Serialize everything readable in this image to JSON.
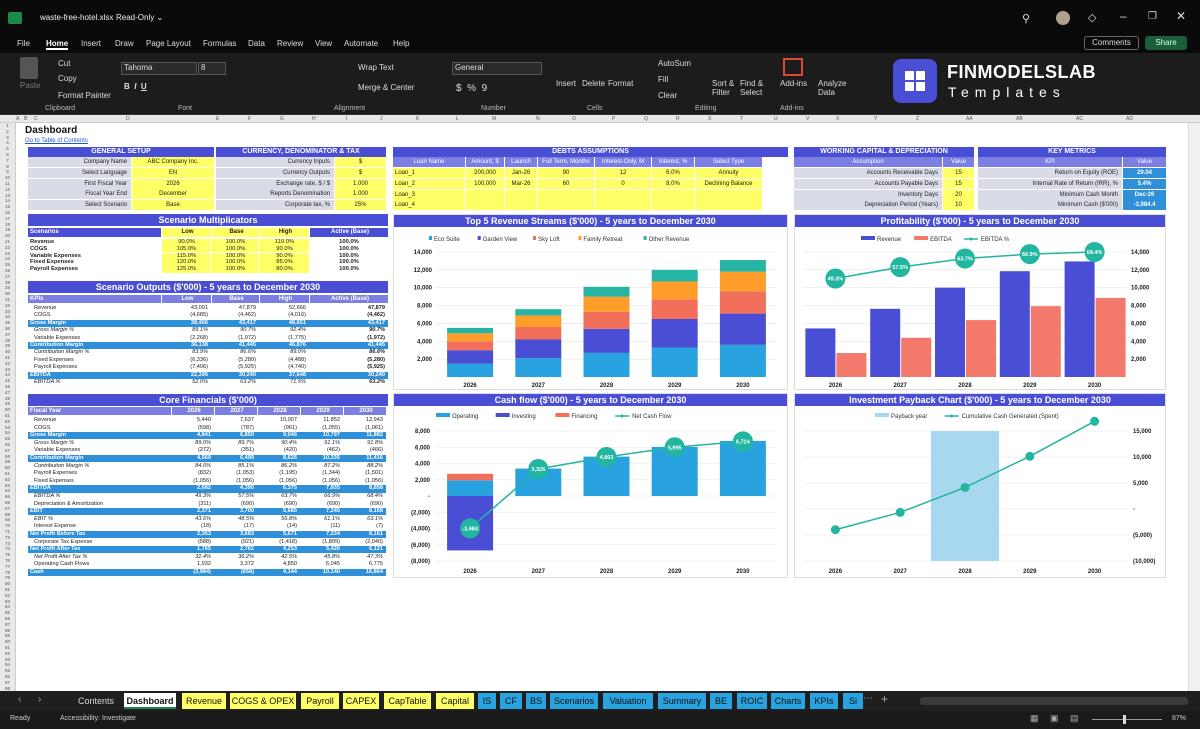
{
  "window": {
    "title": "waste-free-hotel.xlsx",
    "mode": "Read-Only ⌄"
  },
  "menu": [
    "File",
    "Home",
    "Insert",
    "Draw",
    "Page Layout",
    "Formulas",
    "Data",
    "Review",
    "View",
    "Automate",
    "Help"
  ],
  "comments": "Comments",
  "share": "Share",
  "ribbon": {
    "paste": "Paste",
    "cut": "Cut",
    "copy": "Copy",
    "format_painter": "Format Painter",
    "clipboard": "Clipboard",
    "font_name": "Tahoma",
    "font_size": "8",
    "font": "Font",
    "wrap": "Wrap Text",
    "merge": "Merge & Center",
    "alignment": "Alignment",
    "number_format": "General",
    "number": "Number",
    "insert": "Insert",
    "delete": "Delete",
    "format": "Format",
    "cells": "Cells",
    "autosum": "AutoSum",
    "fill": "Fill",
    "clear": "Clear",
    "sort": "Sort & Filter",
    "find": "Find & Select",
    "editing": "Editing",
    "addins": "Add-ins",
    "analyze": "Analyze Data",
    "addins_group": "Add-ins"
  },
  "logo": {
    "name": "FINMODELSLAB",
    "sub": "Templates"
  },
  "col_letters": [
    "A",
    "B",
    "C",
    "D",
    "E",
    "F",
    "G",
    "H",
    "I",
    "J",
    "K",
    "L",
    "M",
    "N",
    "O",
    "P",
    "Q",
    "R",
    "S",
    "T",
    "U",
    "V",
    "X",
    "Y",
    "Z",
    "AA",
    "AB",
    "AC",
    "AD"
  ],
  "sheet": {
    "title": "Dashboard",
    "toc": "Go to Table of Contents",
    "general": {
      "title": "GENERAL SETUP",
      "rows": [
        [
          "Company Name",
          "ABC Company Inc."
        ],
        [
          "Select Language",
          "EN"
        ],
        [
          "First Fiscal Year",
          "2026"
        ],
        [
          "Fiscal Year End",
          "December"
        ],
        [
          "Select Scenario",
          "Base"
        ]
      ]
    },
    "currency": {
      "title": "CURRENCY, DENOMINATOR & TAX",
      "rows": [
        [
          "Currency Inputs",
          "$"
        ],
        [
          "Currency Outputs",
          "$"
        ],
        [
          "Exchange rate, $ / $",
          "1.000"
        ],
        [
          "Reports Denomination",
          "1.000"
        ],
        [
          "Corporate tax, %",
          "25%"
        ]
      ]
    },
    "debts": {
      "title": "DEBTS ASSUMPTIONS",
      "cols": [
        "Loan Name",
        "Amount, $",
        "Launch",
        "Full Term, Months",
        "Interest-Only, M",
        "Interest, %",
        "Select Type"
      ],
      "rows": [
        [
          "Loan_1",
          "200,000",
          "Jan-26",
          "90",
          "12",
          "6.0%",
          "Annuity"
        ],
        [
          "Loan_2",
          "100,000",
          "Mar-26",
          "60",
          "0",
          "8.0%",
          "Declining Balance"
        ],
        [
          "Loan_3",
          "",
          "",
          "",
          "",
          "",
          ""
        ],
        [
          "Loan_4",
          "",
          "",
          "",
          "",
          "",
          ""
        ]
      ]
    },
    "wc": {
      "title": "WORKING CAPITAL & DEPRECIATION",
      "cols": [
        "Assumption",
        "Value"
      ],
      "rows": [
        [
          "Accounts Receivable Days",
          "15"
        ],
        [
          "Accounts Payable Days",
          "15"
        ],
        [
          "Inventory Days",
          "20"
        ],
        [
          "Depreciation Period (Years)",
          "10"
        ]
      ]
    },
    "km": {
      "title": "KEY METRICS",
      "cols": [
        "KPI",
        "Value"
      ],
      "rows": [
        [
          "Return on Equity (ROE)",
          "29.04"
        ],
        [
          "Internal Rate of Return (IRR), %",
          "5.4%"
        ],
        [
          "Minimum Cash Month",
          "Dec-26"
        ],
        [
          "Minimum Cash ($'000)",
          "-3,984.4"
        ]
      ]
    },
    "sm": {
      "title": "Scenario Multiplicators",
      "cols": [
        "Scenarios",
        "Low",
        "Base",
        "High",
        "Active (Base)"
      ],
      "rows": [
        [
          "Revenue",
          "90.0%",
          "100.0%",
          "110.0%",
          "100.0%"
        ],
        [
          "COGS",
          "105.0%",
          "100.0%",
          "90.0%",
          "100.0%"
        ],
        [
          "Variable Expenses",
          "115.0%",
          "100.0%",
          "90.0%",
          "100.0%"
        ],
        [
          "Fixed Expenses",
          "120.0%",
          "100.0%",
          "85.0%",
          "100.0%"
        ],
        [
          "Payroll Expenses",
          "125.0%",
          "100.0%",
          "80.0%",
          "100.0%"
        ]
      ]
    },
    "so": {
      "title": "Scenario Outputs ($'000) - 5 years to December 2030",
      "cols": [
        "KPIs",
        "Low",
        "Base",
        "High",
        "Active (Base)"
      ],
      "rows": [
        [
          "Revenue",
          "43,091",
          "47,879",
          "52,666",
          "47,879"
        ],
        [
          "COGS",
          "(4,685)",
          "(4,462)",
          "(4,016)",
          "(4,462)"
        ],
        [
          "Gross Margin",
          "38,406",
          "43,417",
          "48,651",
          "43,417"
        ],
        [
          "Gross Margin %",
          "89.1%",
          "90.7%",
          "92.4%",
          "90.7%"
        ],
        [
          "Variable Expenses",
          "(2,268)",
          "(1,972)",
          "(1,775)",
          "(1,972)"
        ],
        [
          "Contribution Margin",
          "36,138",
          "41,445",
          "46,876",
          "41,445"
        ],
        [
          "Contribution Margin %",
          "83.9%",
          "86.6%",
          "89.0%",
          "86.6%"
        ],
        [
          "Fixed Expenses",
          "(6,336)",
          "(5,280)",
          "(4,488)",
          "(5,280)"
        ],
        [
          "Payroll Expenses",
          "(7,406)",
          "(5,925)",
          "(4,740)",
          "(5,925)"
        ],
        [
          "EBITDA",
          "22,396",
          "30,240",
          "37,648",
          "30,240"
        ],
        [
          "EBITDA %",
          "52.0%",
          "63.2%",
          "71.5%",
          "63.2%"
        ]
      ]
    },
    "cf": {
      "title": "Core Financials ($'000)",
      "cols": [
        "Fiscal Year",
        "2026",
        "2027",
        "2028",
        "2029",
        "2030"
      ],
      "rows": [
        [
          "Revenue",
          "5,440",
          "7,637",
          "10,007",
          "11,852",
          "12,943"
        ],
        [
          "COGS",
          "(598)",
          "(787)",
          "(961)",
          "(1,055)",
          "(1,061)"
        ],
        [
          "Gross Margin",
          "4,841",
          "6,850",
          "9,046",
          "10,797",
          "11,882"
        ],
        [
          "Gross Margin %",
          "89.0%",
          "89.7%",
          "90.4%",
          "91.1%",
          "91.8%"
        ],
        [
          "Variable Expenses",
          "(272)",
          "(351)",
          "(420)",
          "(462)",
          "(466)"
        ],
        [
          "Contribution Margin",
          "4,569",
          "6,499",
          "8,626",
          "10,335",
          "11,416"
        ],
        [
          "Contribution Margin %",
          "84.0%",
          "85.1%",
          "86.2%",
          "87.2%",
          "88.2%"
        ],
        [
          "Payroll Expenses",
          "(832)",
          "(1,053)",
          "(1,195)",
          "(1,344)",
          "(1,501)"
        ],
        [
          "Fixed Expenses",
          "(1,056)",
          "(1,056)",
          "(1,056)",
          "(1,056)",
          "(1,056)"
        ],
        [
          "EBITDA",
          "2,682",
          "4,390",
          "6,375",
          "7,935",
          "8,858"
        ],
        [
          "EBITDA %",
          "49.3%",
          "57.5%",
          "63.7%",
          "66.9%",
          "68.4%"
        ],
        [
          "Depreciation & Amortization",
          "(311)",
          "(690)",
          "(690)",
          "(690)",
          "(690)"
        ],
        [
          "EBIT",
          "2,371",
          "3,700",
          "5,685",
          "7,245",
          "8,168"
        ],
        [
          "EBIT %",
          "43.6%",
          "48.5%",
          "56.8%",
          "61.1%",
          "63.1%"
        ],
        [
          "Interest Expense",
          "(18)",
          "(17)",
          "(14)",
          "(11)",
          "(7)"
        ],
        [
          "Net Profit Before Tax",
          "2,353",
          "3,683",
          "5,671",
          "7,234",
          "8,161"
        ],
        [
          "Corporate Tax Expense",
          "(588)",
          "(921)",
          "(1,418)",
          "(1,809)",
          "(2,040)"
        ],
        [
          "Net Profit After Tax",
          "1,765",
          "2,762",
          "4,253",
          "5,426",
          "6,121"
        ],
        [
          "Net Profit After Tax %",
          "32.4%",
          "36.2%",
          "42.5%",
          "45.8%",
          "47.3%"
        ],
        [
          "Operating Cash Flows",
          "1,932",
          "3,372",
          "4,850",
          "6,045",
          "6,775"
        ],
        [
          "Cash",
          "(3,984)",
          "(658)",
          "4,144",
          "10,140",
          "16,864"
        ]
      ]
    }
  },
  "tabs": [
    {
      "label": "Contents",
      "color": "#1f1f1f"
    },
    {
      "label": "Dashboard",
      "color": "#ffffff"
    },
    {
      "label": "Revenue",
      "color": "#ffff66"
    },
    {
      "label": "COGS & OPEX",
      "color": "#ffff66"
    },
    {
      "label": "Payroll",
      "color": "#ffff66"
    },
    {
      "label": "CAPEX",
      "color": "#ffff66"
    },
    {
      "label": "CapTable",
      "color": "#ffff66"
    },
    {
      "label": "Capital",
      "color": "#ffff66"
    },
    {
      "label": "IS",
      "color": "#29a3e0"
    },
    {
      "label": "CF",
      "color": "#29a3e0"
    },
    {
      "label": "BS",
      "color": "#29a3e0"
    },
    {
      "label": "Scenarios",
      "color": "#29a3e0"
    },
    {
      "label": "Valuation",
      "color": "#29a3e0"
    },
    {
      "label": "Summary",
      "color": "#29a3e0"
    },
    {
      "label": "BE",
      "color": "#29a3e0"
    },
    {
      "label": "ROIC",
      "color": "#29a3e0"
    },
    {
      "label": "Charts",
      "color": "#29a3e0"
    },
    {
      "label": "KPIs",
      "color": "#29a3e0"
    },
    {
      "label": "Si",
      "color": "#29a3e0"
    }
  ],
  "status": {
    "ready": "Ready",
    "access": "Accessibility: Investigate",
    "zoom": "87%"
  },
  "chart_data": [
    {
      "type": "bar",
      "title": "Top 5 Revenue Streams ($'000) - 5 years to December 2030",
      "categories": [
        "2026",
        "2027",
        "2028",
        "2029",
        "2030"
      ],
      "ylim": [
        0,
        14000
      ],
      "yticks": [
        2000,
        4000,
        6000,
        8000,
        10000,
        12000,
        14000
      ],
      "series": [
        {
          "name": "Eco Suite",
          "color": "#29a3e0",
          "values": [
            1500,
            2100,
            2700,
            3300,
            3600
          ]
        },
        {
          "name": "Garden View",
          "color": "#4a4ed4",
          "values": [
            1500,
            2100,
            2700,
            3200,
            3500
          ]
        },
        {
          "name": "Sky Loft",
          "color": "#f26f5b",
          "values": [
            1000,
            1400,
            1900,
            2200,
            2500
          ]
        },
        {
          "name": "Family Retreat",
          "color": "#ff9d2a",
          "values": [
            900,
            1300,
            1700,
            2000,
            2200
          ]
        },
        {
          "name": "Other Revenue",
          "color": "#26b5a4",
          "values": [
            600,
            700,
            1100,
            1300,
            1300
          ]
        }
      ]
    },
    {
      "type": "bar",
      "title": "Profitability ($'000) - 5 years to December 2030",
      "categories": [
        "2026",
        "2027",
        "2028",
        "2029",
        "2030"
      ],
      "ylim": [
        0,
        14000
      ],
      "yticks": [
        2000,
        4000,
        6000,
        8000,
        10000,
        12000,
        14000
      ],
      "series": [
        {
          "name": "Revenue",
          "color": "#4a4ed4",
          "values": [
            5440,
            7637,
            10007,
            11852,
            12943
          ]
        },
        {
          "name": "EBITDA",
          "color": "#f2796b",
          "values": [
            2682,
            4390,
            6375,
            7935,
            8858
          ]
        },
        {
          "name": "EBITDA %",
          "color": "#22b5a0",
          "values": [
            49.3,
            57.5,
            63.7,
            66.9,
            68.4
          ],
          "labels": [
            "49.3%",
            "57.5%",
            "63.7%",
            "66.9%",
            "68.4%"
          ]
        }
      ]
    },
    {
      "type": "bar",
      "title": "Cash flow ($'000) - 5 years to December 2030",
      "categories": [
        "2026",
        "2027",
        "2028",
        "2029",
        "2030"
      ],
      "ylim": [
        -8000,
        8000
      ],
      "yticks": [
        -8000,
        -6000,
        -4000,
        -2000,
        0,
        2000,
        4000,
        6000,
        8000
      ],
      "ytick_labels": [
        "(8,000)",
        "(6,000)",
        "(4,000)",
        "(2,000)",
        "-",
        "2,000",
        "4,000",
        "6,000",
        "8,000"
      ],
      "series": [
        {
          "name": "Operating",
          "color": "#29a3e0",
          "values": [
            1932,
            3372,
            4850,
            6045,
            6775
          ]
        },
        {
          "name": "Investing",
          "color": "#4a4ed4",
          "values": [
            -6700,
            0,
            0,
            0,
            0
          ]
        },
        {
          "name": "Financing",
          "color": "#f26f5b",
          "values": [
            800,
            0,
            0,
            0,
            0
          ]
        },
        {
          "name": "Net Cash Flow",
          "color": "#22b5a0",
          "values": [
            -3984,
            3326,
            4803,
            5995,
            6724
          ],
          "labels": [
            "-3,984",
            "3,326",
            "4,803",
            "5,995",
            "6,724"
          ]
        }
      ]
    },
    {
      "type": "line",
      "title": "Investment Payback Chart ($'000) - 5 years to December 2030",
      "categories": [
        "2026",
        "2027",
        "2028",
        "2029",
        "2030"
      ],
      "ylim": [
        -10000,
        15000
      ],
      "yticks": [
        -10000,
        -5000,
        0,
        5000,
        10000,
        15000
      ],
      "ytick_labels": [
        "(10,000)",
        "(5,000)",
        "-",
        "5,000",
        "10,000",
        "15,000"
      ],
      "series": [
        {
          "name": "Payback year",
          "color": "#a8d8f0",
          "values": [
            0,
            0,
            1,
            0,
            0
          ]
        },
        {
          "name": "Cumulative Cash Generated (Spent)",
          "color": "#22b5a0",
          "values": [
            -3984,
            -658,
            4144,
            10140,
            16864
          ]
        }
      ]
    }
  ]
}
